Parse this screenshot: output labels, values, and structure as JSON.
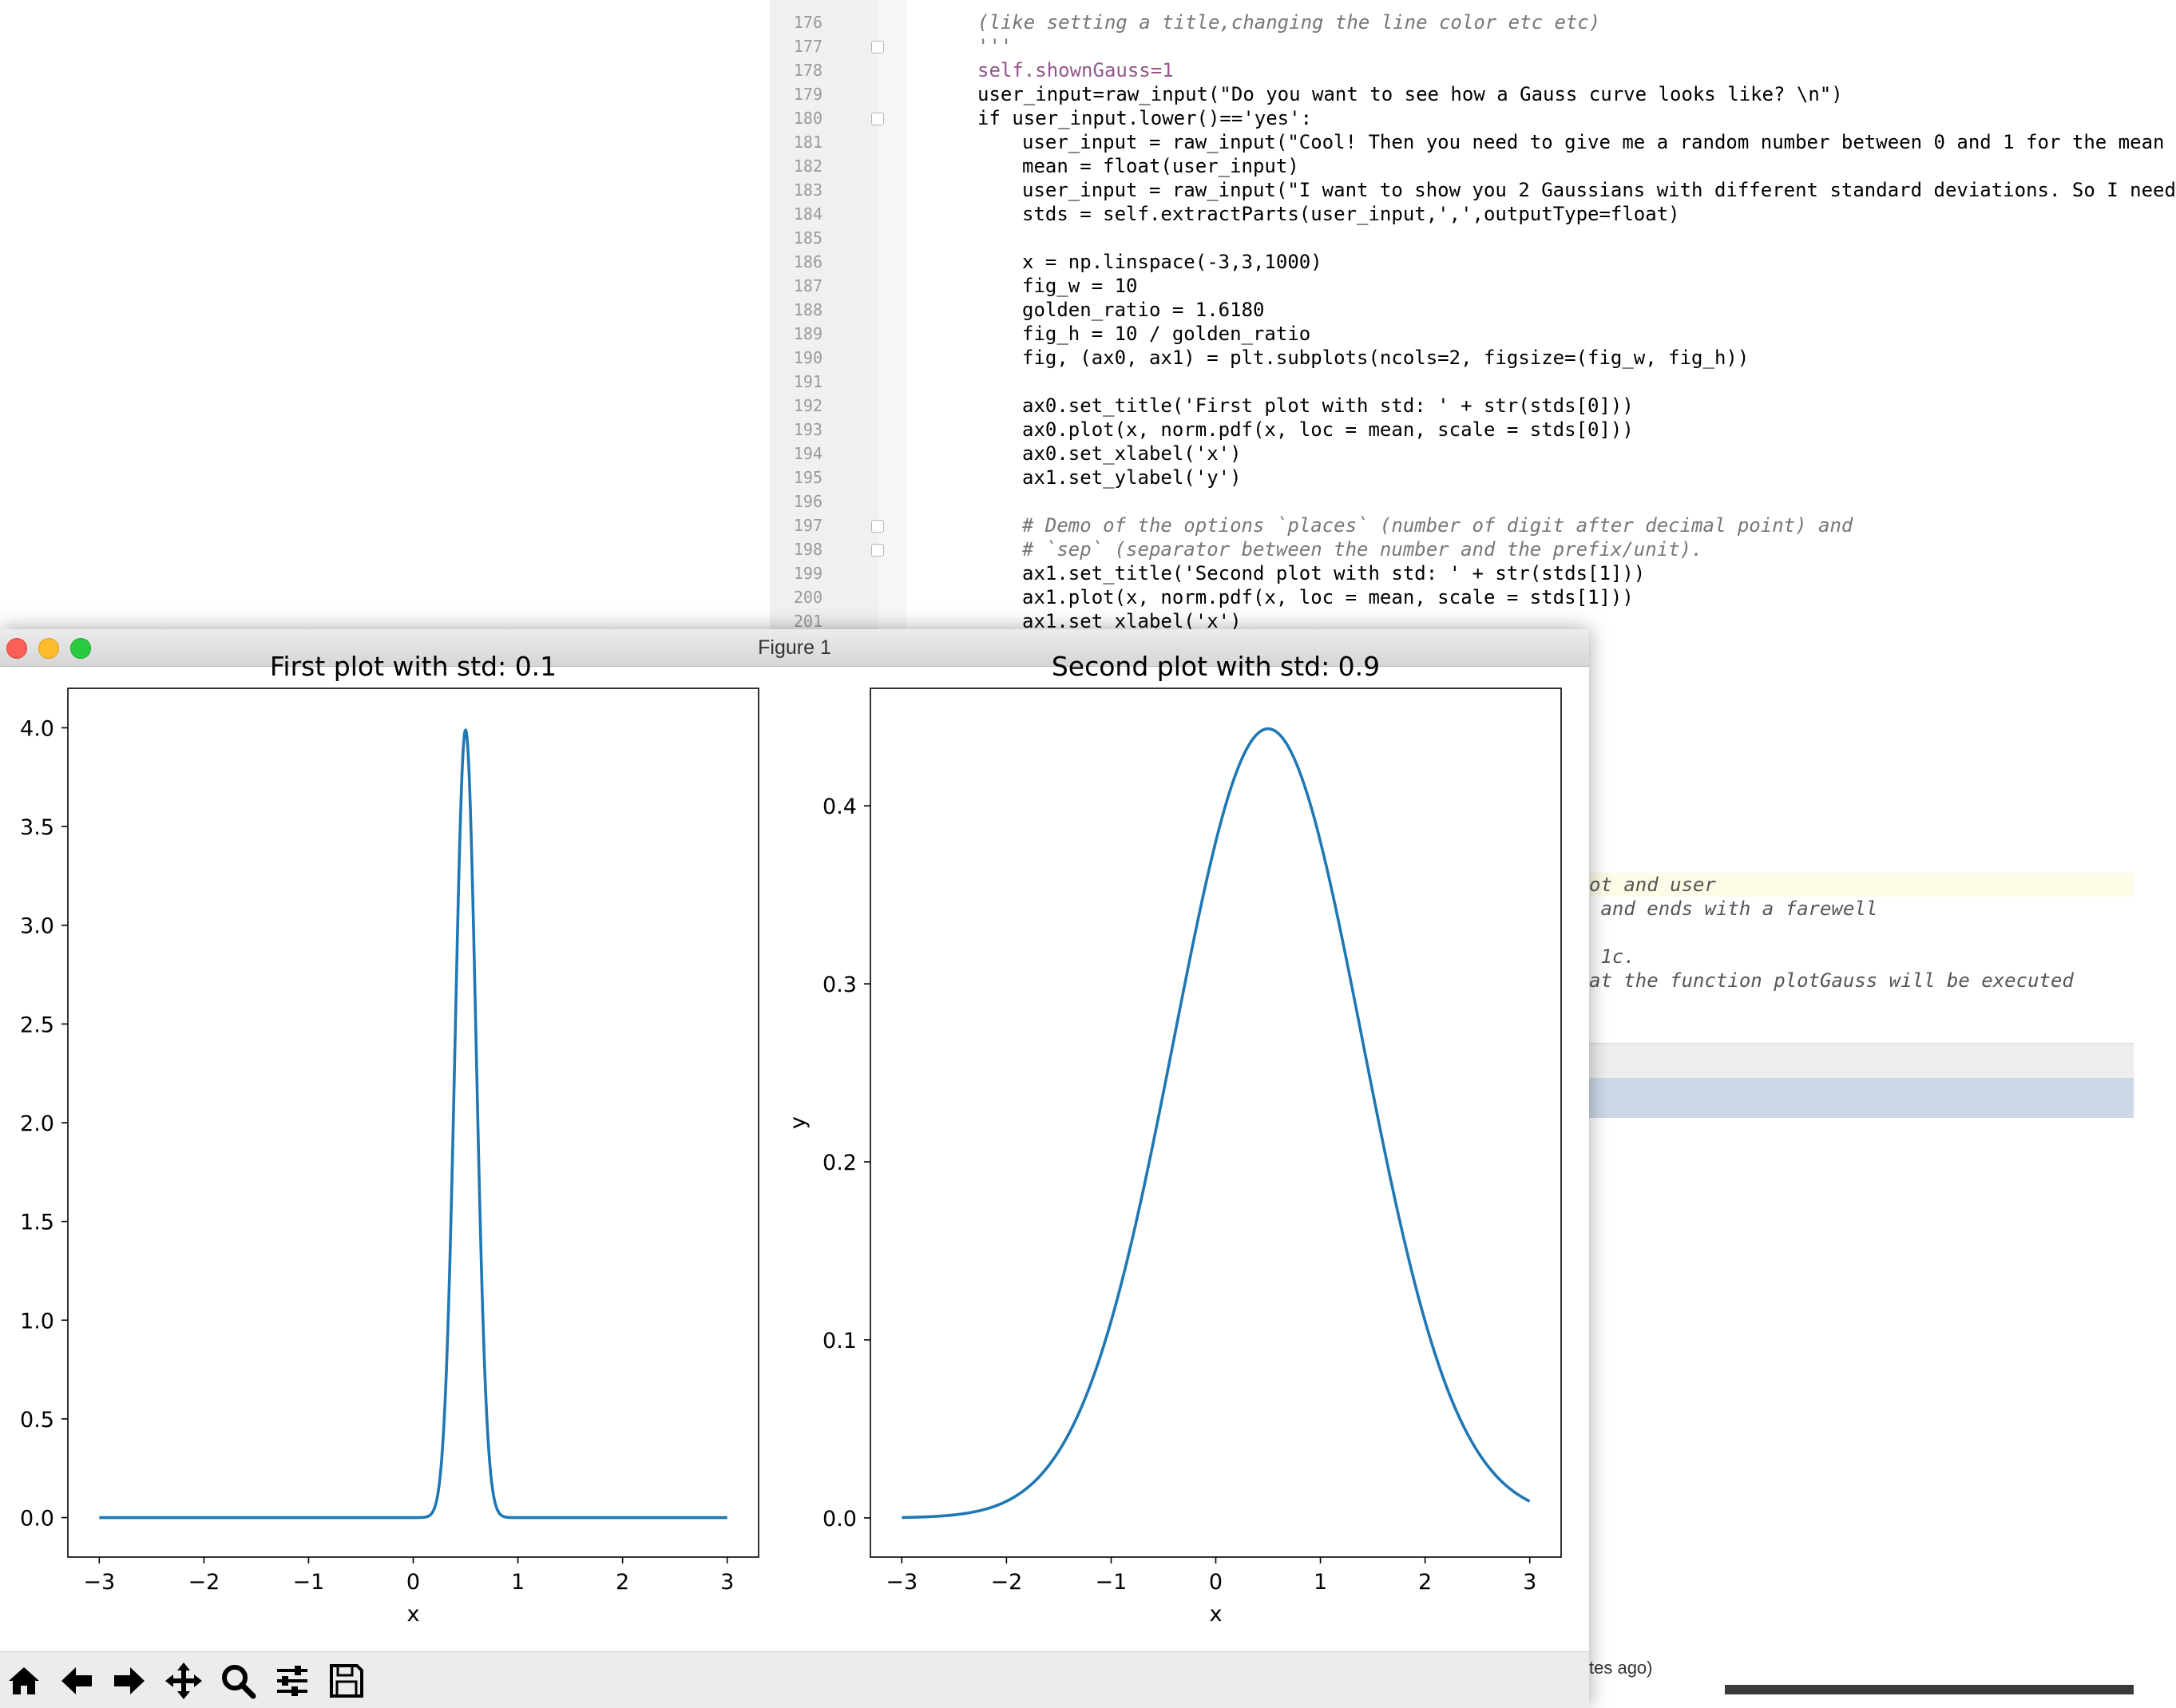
{
  "editor": {
    "line_numbers": [
      "176",
      "177",
      "178",
      "179",
      "180",
      "181",
      "182",
      "183",
      "184",
      "185",
      "186",
      "187",
      "188",
      "189",
      "190",
      "191",
      "192",
      "193",
      "194",
      "195",
      "196",
      "197",
      "198",
      "199",
      "200",
      "201"
    ],
    "lines": [
      {
        "text": "(like setting a title,changing the line color etc etc)",
        "style": "cmt"
      },
      {
        "text": "'''",
        "style": "cmt"
      },
      {
        "text": "self.shownGauss=1",
        "style": "self"
      },
      {
        "text": "user_input=raw_input(\"Do you want to see how a Gauss curve looks like? \\n\")",
        "style": ""
      },
      {
        "text": "if user_input.lower()=='yes':",
        "style": ""
      },
      {
        "text": "user_input = raw_input(\"Cool! Then you need to give me a random number between 0 and 1 for the mean",
        "style": "ind"
      },
      {
        "text": "mean = float(user_input)",
        "style": "ind"
      },
      {
        "text": "user_input = raw_input(\"I want to show you 2 Gaussians with different standard deviations. So I need",
        "style": "ind"
      },
      {
        "text": "stds = self.extractParts(user_input,',',outputType=float)",
        "style": "ind"
      },
      {
        "text": "",
        "style": "ind"
      },
      {
        "text": "x = np.linspace(-3,3,1000)",
        "style": "ind"
      },
      {
        "text": "fig_w = 10",
        "style": "ind"
      },
      {
        "text": "golden_ratio = 1.6180",
        "style": "ind"
      },
      {
        "text": "fig_h = 10 / golden_ratio",
        "style": "ind"
      },
      {
        "text": "fig, (ax0, ax1) = plt.subplots(ncols=2, figsize=(fig_w, fig_h))",
        "style": "ind"
      },
      {
        "text": "",
        "style": "ind"
      },
      {
        "text": "ax0.set_title('First plot with std: ' + str(stds[0]))",
        "style": "ind"
      },
      {
        "text": "ax0.plot(x, norm.pdf(x, loc = mean, scale = stds[0]))",
        "style": "ind"
      },
      {
        "text": "ax0.set_xlabel('x')",
        "style": "ind"
      },
      {
        "text": "ax1.set_ylabel('y')",
        "style": "ind"
      },
      {
        "text": "",
        "style": "ind"
      },
      {
        "text": "# Demo of the options `places` (number of digit after decimal point) and",
        "style": "ind cmt"
      },
      {
        "text": "# `sep` (separator between the number and the prefix/unit).",
        "style": "ind cmt"
      },
      {
        "text": "ax1.set_title('Second plot with std: ' + str(stds[1]))",
        "style": "ind"
      },
      {
        "text": "ax1.plot(x, norm.pdf(x, loc = mean, scale = stds[1]))",
        "style": "ind"
      },
      {
        "text": "ax1.set_xlabel('x')",
        "style": "ind"
      }
    ],
    "side_lines": [
      "ot and user",
      " and ends with a farewell",
      "",
      " 1c.",
      "at the function plotGauss will be executed"
    ],
    "status_text": "tes ago)"
  },
  "window": {
    "title": "Figure 1"
  },
  "toolbar": {
    "buttons": [
      "home-icon",
      "back-arrow-icon",
      "forward-arrow-icon",
      "pan-icon",
      "zoom-icon",
      "configure-subplots-icon",
      "save-icon"
    ]
  },
  "chart_data": [
    {
      "type": "line",
      "title": "First plot with std: 0.1",
      "xlabel": "x",
      "ylabel": "",
      "xlim": [
        -3.3,
        3.3
      ],
      "ylim": [
        -0.2,
        4.2
      ],
      "xticks": [
        "−3",
        "−2",
        "−1",
        "0",
        "1",
        "2",
        "3"
      ],
      "xtick_values": [
        -3,
        -2,
        -1,
        0,
        1,
        2,
        3
      ],
      "yticks": [
        "0.0",
        "0.5",
        "1.0",
        "1.5",
        "2.0",
        "2.5",
        "3.0",
        "3.5",
        "4.0"
      ],
      "ytick_values": [
        0,
        0.5,
        1,
        1.5,
        2,
        2.5,
        3,
        3.5,
        4
      ],
      "series": [
        {
          "distribution": "normal pdf",
          "mean": 0.5,
          "std": 0.1,
          "x_range": [
            -3,
            3
          ],
          "color": "#1f77b4"
        }
      ],
      "grid": false
    },
    {
      "type": "line",
      "title": "Second plot with std: 0.9",
      "xlabel": "x",
      "ylabel": "y",
      "xlim": [
        -3.3,
        3.3
      ],
      "ylim": [
        -0.022,
        0.466
      ],
      "xticks": [
        "−3",
        "−2",
        "−1",
        "0",
        "1",
        "2",
        "3"
      ],
      "xtick_values": [
        -3,
        -2,
        -1,
        0,
        1,
        2,
        3
      ],
      "yticks": [
        "0.0",
        "0.1",
        "0.2",
        "0.3",
        "0.4"
      ],
      "ytick_values": [
        0,
        0.1,
        0.2,
        0.3,
        0.4
      ],
      "series": [
        {
          "distribution": "normal pdf",
          "mean": 0.5,
          "std": 0.9,
          "x_range": [
            -3,
            3
          ],
          "color": "#1f77b4"
        }
      ],
      "grid": false
    }
  ]
}
